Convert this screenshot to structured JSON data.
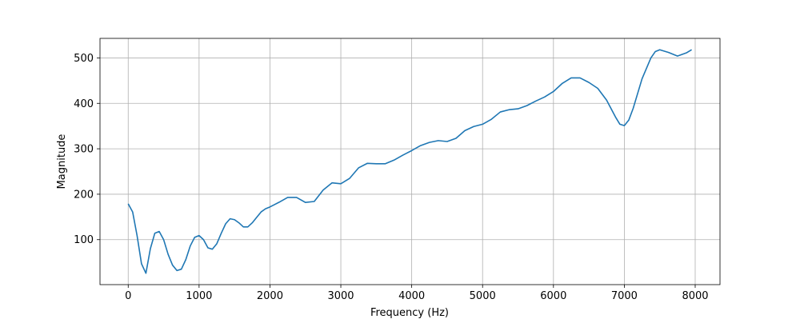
{
  "chart_data": {
    "type": "line",
    "xlabel": "Frequency (Hz)",
    "ylabel": "Magnitude",
    "x": [
      0,
      62.5,
      125,
      187.5,
      250,
      312.5,
      375,
      437.5,
      500,
      562.5,
      625,
      687.5,
      750,
      812.5,
      875,
      937.5,
      1000,
      1062.5,
      1125,
      1187.5,
      1250,
      1312.5,
      1375,
      1437.5,
      1500,
      1562.5,
      1625,
      1687.5,
      1750,
      1812.5,
      1875,
      1937.5,
      2000,
      2125,
      2250,
      2375,
      2500,
      2625,
      2750,
      2875,
      3000,
      3125,
      3250,
      3375,
      3500,
      3625,
      3750,
      3875,
      4000,
      4125,
      4250,
      4375,
      4500,
      4625,
      4750,
      4875,
      5000,
      5125,
      5250,
      5375,
      5500,
      5625,
      5750,
      5875,
      6000,
      6125,
      6250,
      6375,
      6500,
      6625,
      6750,
      6875,
      6937.5,
      7000,
      7062.5,
      7125,
      7250,
      7375,
      7437.5,
      7500,
      7625,
      7750,
      7875,
      7950
    ],
    "series": [
      {
        "color": "#1f77b4",
        "values": [
          179,
          161,
          109,
          47,
          26,
          80,
          114,
          118,
          100,
          68,
          44,
          32,
          35,
          56,
          86,
          105,
          109,
          100,
          82,
          79,
          91,
          114,
          135,
          146,
          144,
          137,
          128,
          128,
          137,
          149,
          161,
          168,
          172,
          182,
          193,
          193,
          182,
          184,
          209,
          225,
          223,
          235,
          258,
          268,
          267,
          267,
          275,
          286,
          296,
          307,
          314,
          318,
          316,
          323,
          340,
          349,
          354,
          365,
          381,
          386,
          388,
          395,
          405,
          414,
          426,
          444,
          456,
          456,
          446,
          433,
          407,
          370,
          354,
          351,
          363,
          389,
          454,
          500,
          514,
          518,
          512,
          504,
          511,
          518
        ]
      }
    ],
    "xlim": [
      -398,
      8350
    ],
    "ylim": [
      1,
      543
    ],
    "xticks": [
      0,
      1000,
      2000,
      3000,
      4000,
      5000,
      6000,
      7000,
      8000
    ],
    "yticks": [
      100,
      200,
      300,
      400,
      500
    ],
    "grid": true
  }
}
